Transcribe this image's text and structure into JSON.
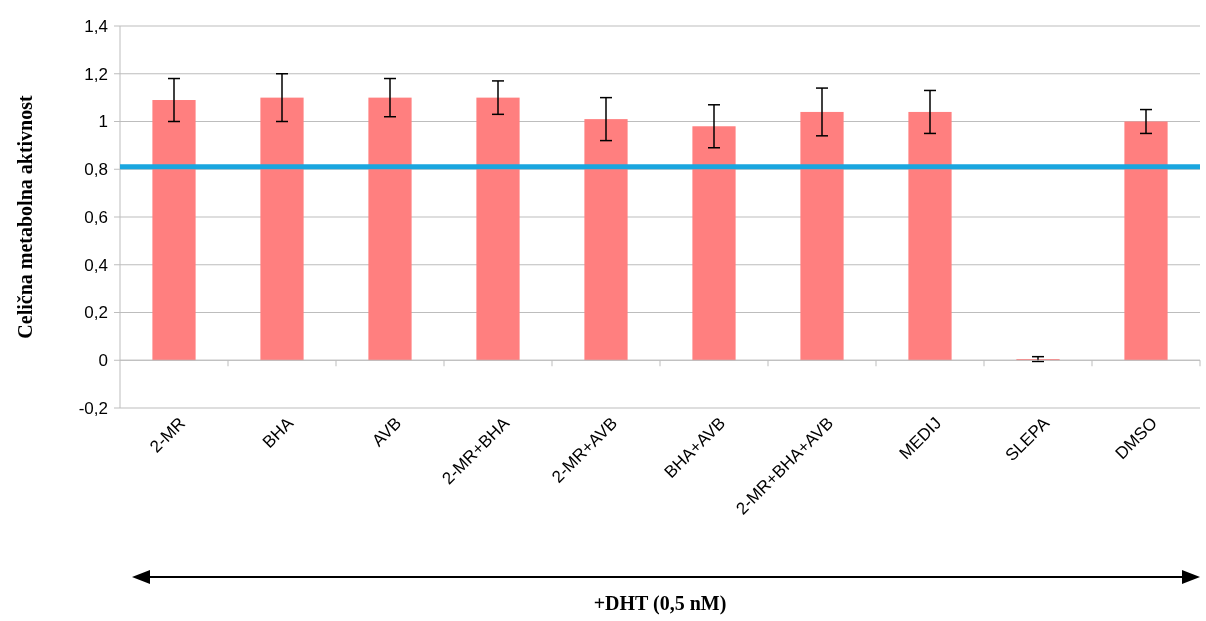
{
  "chart_data": {
    "type": "bar",
    "ylabel": "Celična metabolna aktivnost",
    "xlabel": "+DHT (0,5 nM)",
    "categories": [
      "2-MR",
      "BHA",
      "AVB",
      "2-MR+BHA",
      "2-MR+AVB",
      "BHA+AVB",
      "2-MR+BHA+AVB",
      "MEDIJ",
      "SLEPA",
      "DMSO"
    ],
    "values": [
      1.09,
      1.1,
      1.1,
      1.1,
      1.01,
      0.98,
      1.04,
      1.04,
      0.005,
      1.0
    ],
    "errors": [
      0.09,
      0.1,
      0.08,
      0.07,
      0.09,
      0.09,
      0.1,
      0.09,
      0.01,
      0.05
    ],
    "color": "#ff7f7f",
    "ylim": [
      -0.2,
      1.4
    ],
    "yticks": [
      {
        "value": -0.2,
        "label": "-0,2"
      },
      0,
      {
        "value": 0.2,
        "label": "0,2"
      },
      {
        "value": 0.4,
        "label": "0,4"
      },
      {
        "value": 0.6,
        "label": "0,6"
      },
      {
        "value": 0.8,
        "label": "0,8"
      },
      1,
      {
        "value": 1.2,
        "label": "1,2"
      },
      {
        "value": 1.4,
        "label": "1,4"
      }
    ],
    "grid": "y",
    "ref_lines": [
      {
        "axis": "y",
        "value": 0.81,
        "color": "#1aa6df"
      }
    ]
  }
}
